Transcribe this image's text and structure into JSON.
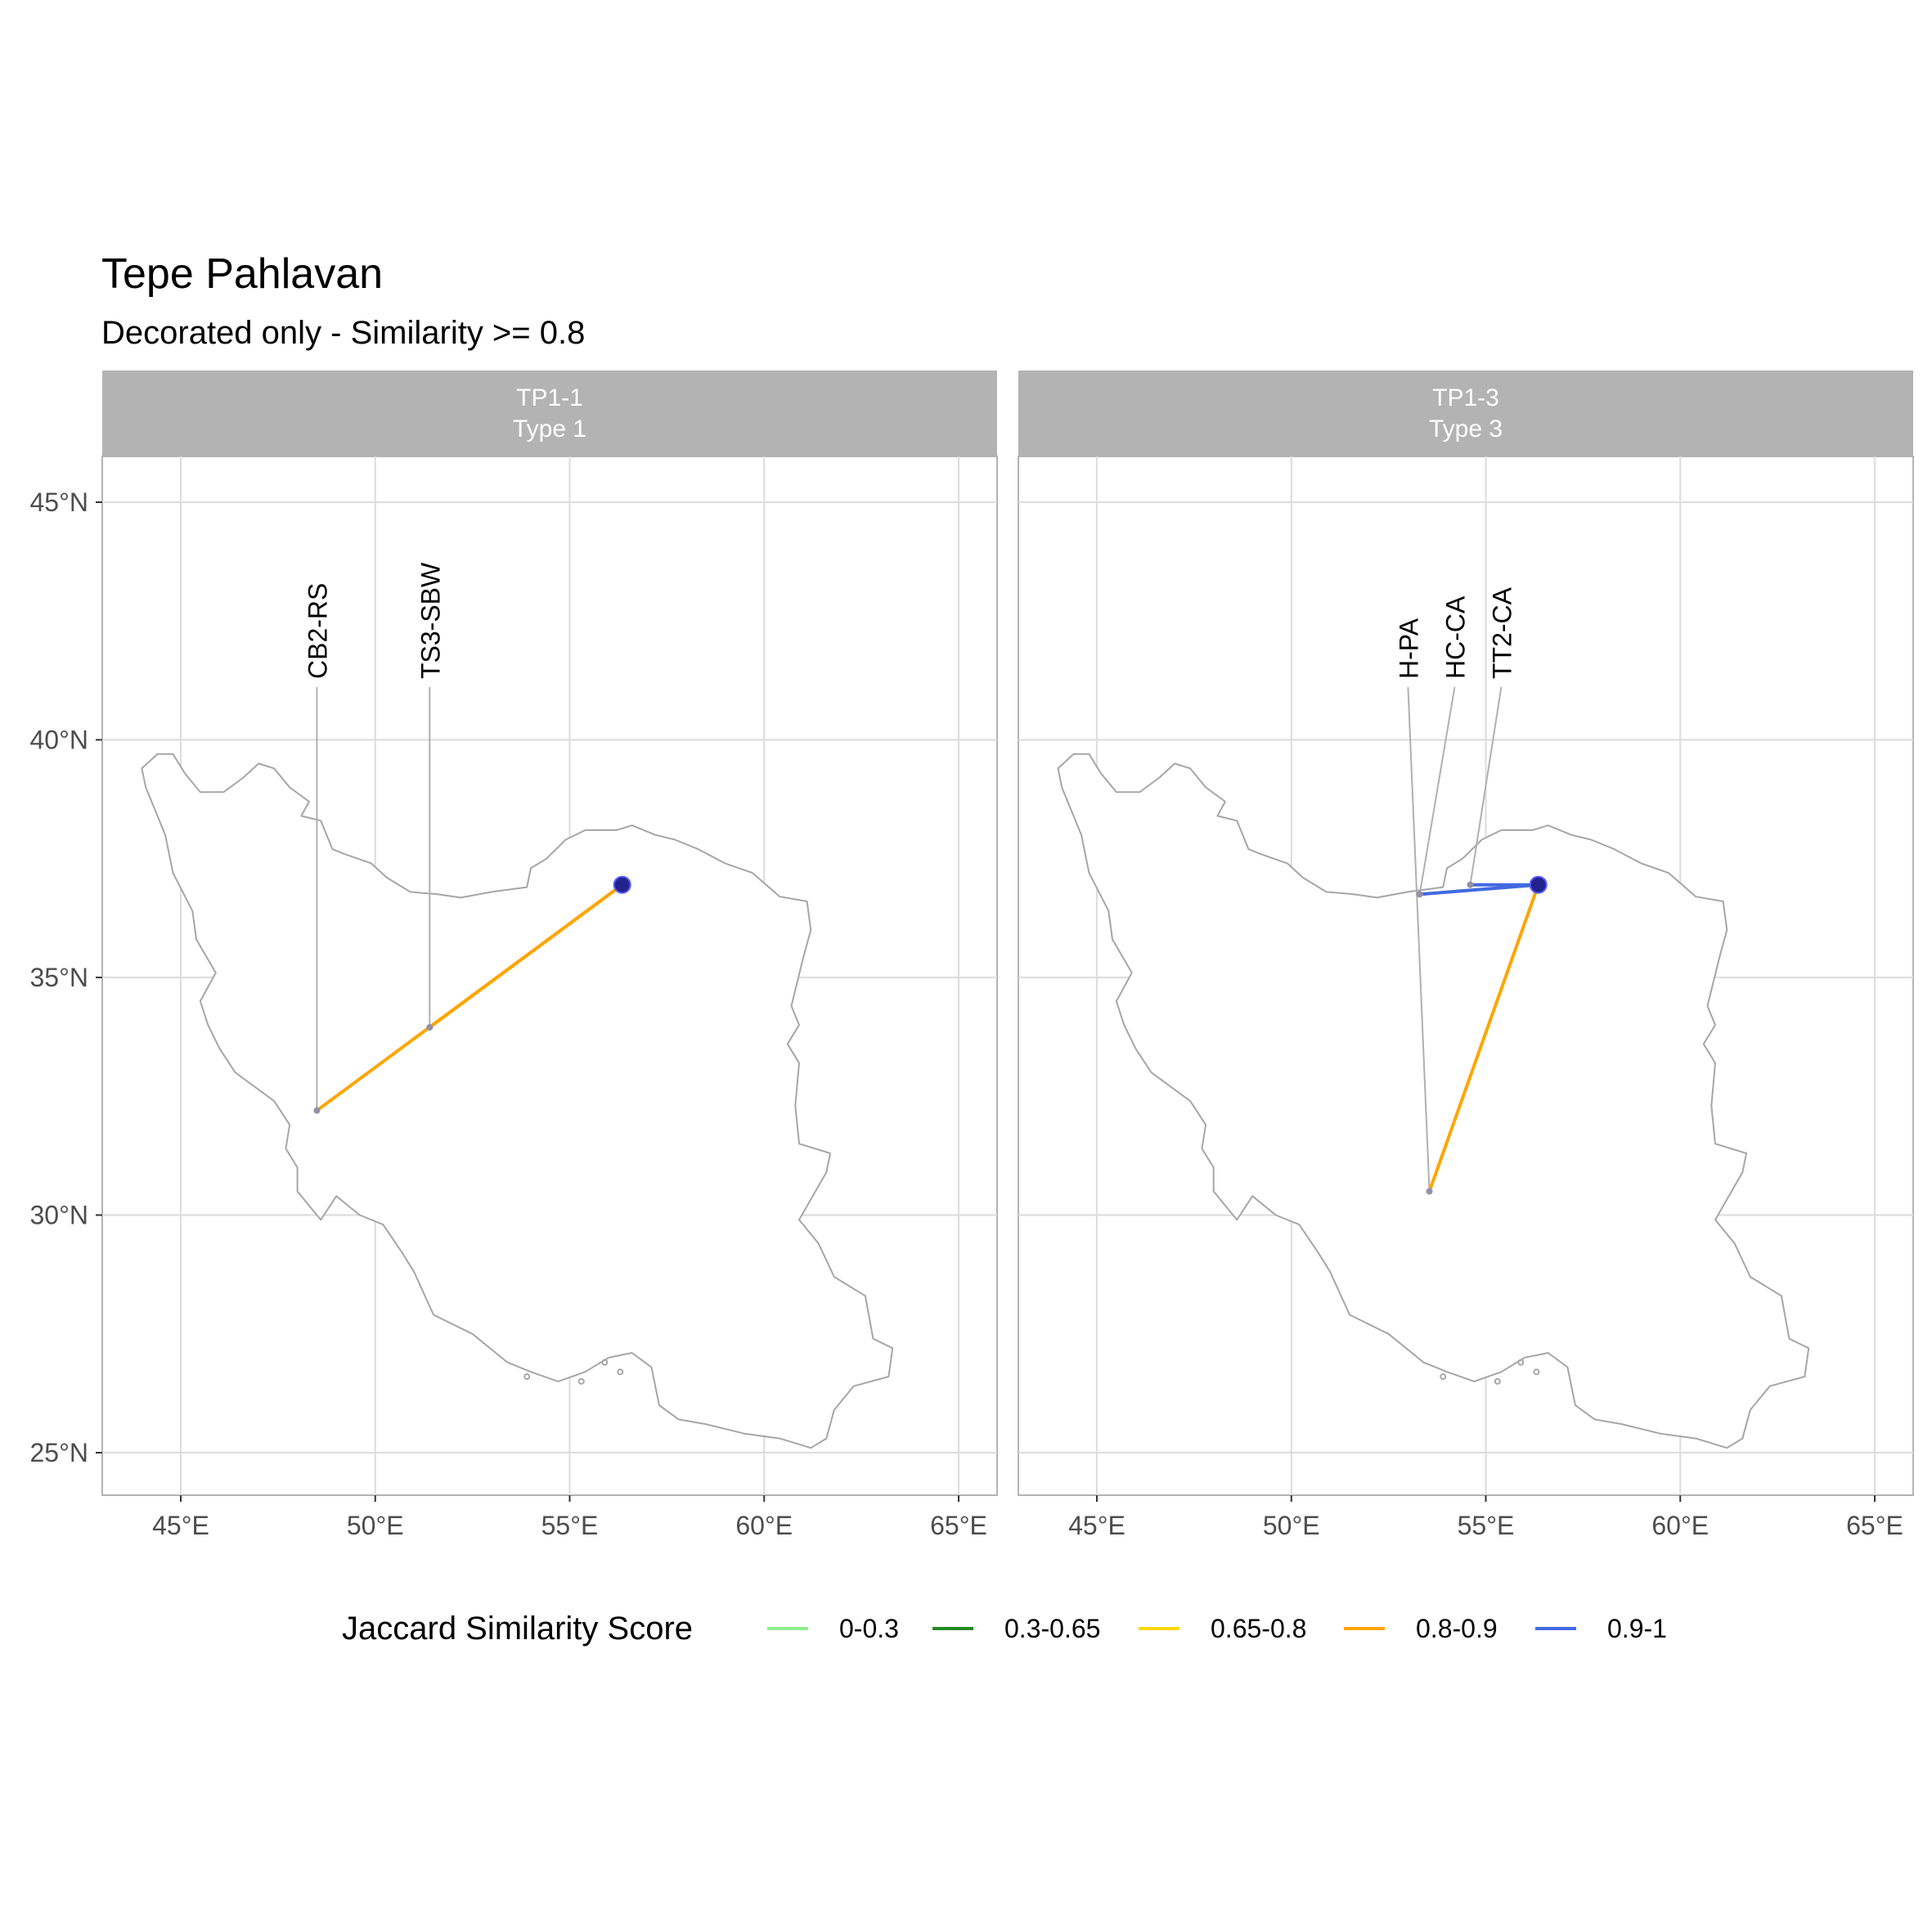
{
  "title": "Tepe Pahlavan",
  "subtitle": "Decorated only - Similarity >= 0.8",
  "x_ticks": [
    {
      "lon": 45,
      "label": "45°E"
    },
    {
      "lon": 50,
      "label": "50°E"
    },
    {
      "lon": 55,
      "label": "55°E"
    },
    {
      "lon": 60,
      "label": "60°E"
    },
    {
      "lon": 65,
      "label": "65°E"
    }
  ],
  "y_ticks": [
    {
      "lat": 45,
      "label": "45°N"
    },
    {
      "lat": 40,
      "label": "40°N"
    },
    {
      "lat": 35,
      "label": "35°N"
    },
    {
      "lat": 30,
      "label": "30°N"
    },
    {
      "lat": 25,
      "label": "25°N"
    }
  ],
  "origin": {
    "lon": 56.35,
    "lat": 36.95
  },
  "panels": [
    {
      "strip_line1": "TP1-1",
      "strip_line2": "Type 1",
      "links": [
        {
          "site": "CB2-RS",
          "lon": 48.5,
          "lat": 32.2,
          "score_class": "0.8-0.9"
        },
        {
          "site": "TS3-SBW",
          "lon": 51.4,
          "lat": 33.95,
          "score_class": "0.8-0.9"
        }
      ]
    },
    {
      "strip_line1": "TP1-3",
      "strip_line2": "Type 3",
      "links": [
        {
          "site": "H-PA",
          "lon": 53.55,
          "lat": 30.5,
          "score_class": "0.8-0.9"
        },
        {
          "site": "HC-CA",
          "lon": 53.3,
          "lat": 36.75,
          "score_class": "0.9-1"
        },
        {
          "site": "TT2-CA",
          "lon": 54.6,
          "lat": 36.95,
          "score_class": "0.9-1"
        }
      ]
    }
  ],
  "legend": {
    "title": "Jaccard Similarity Score",
    "items": [
      {
        "label": "0-0.3",
        "color": "#90EE90"
      },
      {
        "label": "0.3-0.65",
        "color": "#228B22"
      },
      {
        "label": "0.65-0.8",
        "color": "#FFD700"
      },
      {
        "label": "0.8-0.9",
        "color": "#FFA500"
      },
      {
        "label": "0.9-1",
        "color": "#4169E1"
      }
    ]
  },
  "chart_data": {
    "type": "map",
    "title": "Tepe Pahlavan",
    "subtitle": "Decorated only - Similarity >= 0.8",
    "xlim": [
      43,
      66
    ],
    "ylim": [
      24,
      46
    ],
    "grid": true,
    "legend_position": "bottom",
    "facets": [
      "TP1-1 Type 1",
      "TP1-3 Type 3"
    ]
  }
}
